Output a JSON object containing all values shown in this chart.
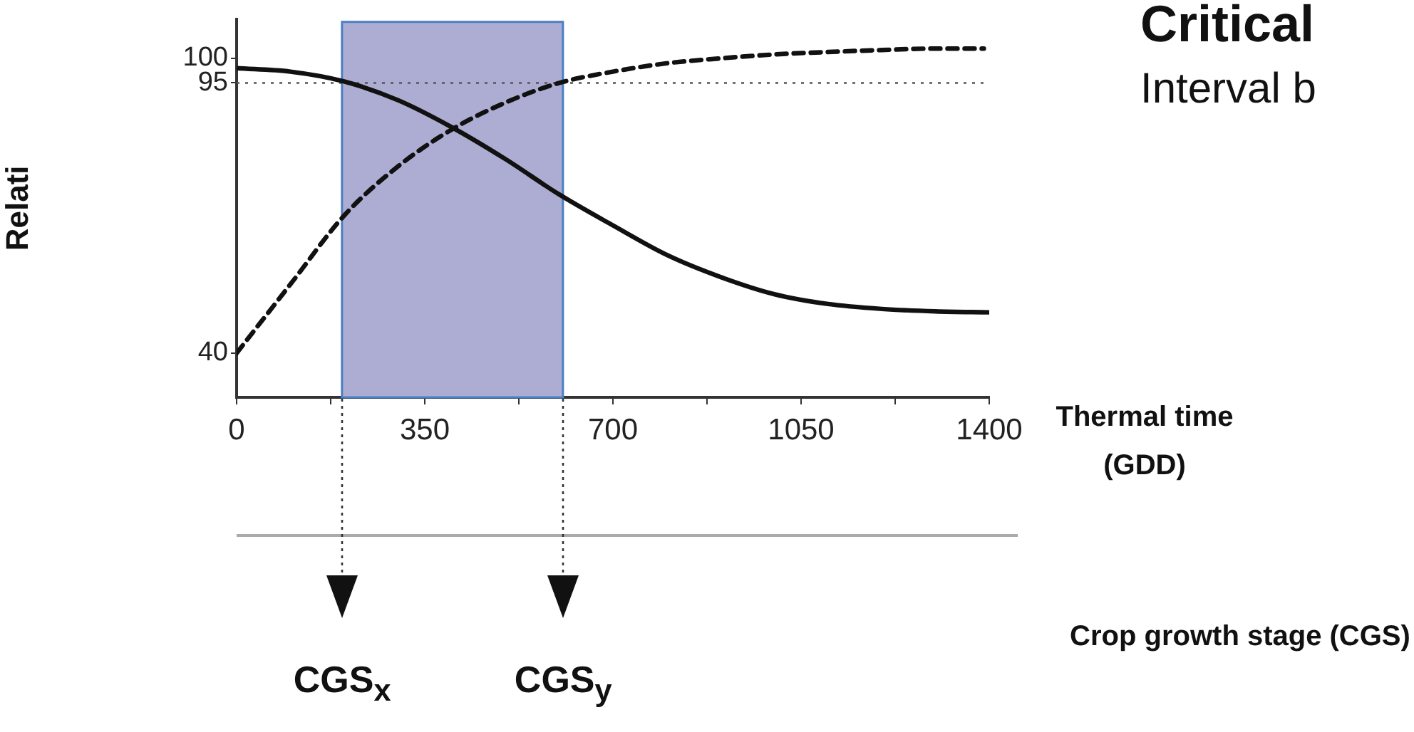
{
  "chart_data": {
    "type": "line",
    "title": "Critical",
    "subtitle": "Interval b",
    "ylabel": "Relati",
    "xlabel": "Thermal time (GDD)",
    "annotations": [
      "Crop growth stage (CGS)",
      "CGS$_{x}$",
      "CGS$_{y}$"
    ],
    "series": [
      {
        "color": "#111111",
        "line_style": "solid",
        "x": [
          0,
          100,
          200,
          300,
          400,
          500,
          600,
          700,
          800,
          900,
          1000,
          1100,
          1200,
          1300,
          1400
        ],
        "values": [
          98,
          97.3,
          95.3,
          91.5,
          86,
          79.5,
          72.3,
          66,
          60,
          55.5,
          52,
          50,
          49,
          48.5,
          48.3
        ]
      },
      {
        "color": "#111111",
        "line_style": "dashed",
        "x": [
          0,
          100,
          200,
          300,
          400,
          500,
          600,
          700,
          800,
          900,
          1000,
          1100,
          1200,
          1300,
          1390
        ],
        "values": [
          40,
          54,
          68,
          78,
          85.5,
          91,
          95,
          97.3,
          99,
          100,
          100.8,
          101.3,
          101.7,
          102,
          102
        ]
      }
    ],
    "xlim": [
      0,
      1400
    ],
    "xticks": [
      0,
      {
        "value": 175,
        "label": null
      },
      350,
      {
        "value": 525,
        "label": null
      },
      700,
      {
        "value": 875,
        "label": null
      },
      1050,
      {
        "value": 1225,
        "label": null
      },
      1400
    ],
    "ylim": [
      31,
      108
    ],
    "yticks": [
      40,
      95,
      100
    ],
    "ref_lines": [
      {
        "axis": "y",
        "value": 95,
        "color": "#555555",
        "line_style": "dotted"
      }
    ],
    "bands": [
      {
        "axis": "x",
        "from": 196,
        "to": 607,
        "color": "#adadd3"
      }
    ],
    "marker": "none",
    "grid": false,
    "legend": false
  }
}
